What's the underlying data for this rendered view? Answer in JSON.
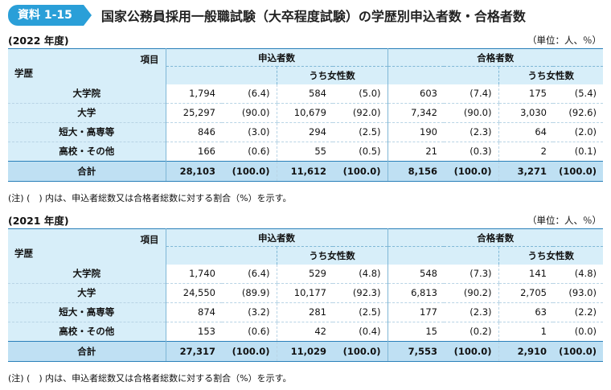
{
  "header": {
    "badge": "資料 1-15",
    "title": "国家公務員採用一般職試験（大卒程度試験）の学歴別申込者数・合格者数"
  },
  "columns": {
    "item_label": "項目",
    "edu_label": "学歴",
    "applicants": "申込者数",
    "passers": "合格者数",
    "women": "うち女性数"
  },
  "sections": [
    {
      "year": "(2022 年度)",
      "unit": "（単位：人、％）",
      "rows": [
        {
          "label": "大学院",
          "a": "1,794",
          "ap": "(6.4)",
          "aw": "584",
          "awp": "(5.0)",
          "p": "603",
          "pp": "(7.4)",
          "pw": "175",
          "pwp": "(5.4)"
        },
        {
          "label": "大学",
          "a": "25,297",
          "ap": "(90.0)",
          "aw": "10,679",
          "awp": "(92.0)",
          "p": "7,342",
          "pp": "(90.0)",
          "pw": "3,030",
          "pwp": "(92.6)"
        },
        {
          "label": "短大・高専等",
          "a": "846",
          "ap": "(3.0)",
          "aw": "294",
          "awp": "(2.5)",
          "p": "190",
          "pp": "(2.3)",
          "pw": "64",
          "pwp": "(2.0)"
        },
        {
          "label": "高校・その他",
          "a": "166",
          "ap": "(0.6)",
          "aw": "55",
          "awp": "(0.5)",
          "p": "21",
          "pp": "(0.3)",
          "pw": "2",
          "pwp": "(0.1)"
        }
      ],
      "total": {
        "label": "合計",
        "a": "28,103",
        "ap": "(100.0)",
        "aw": "11,612",
        "awp": "(100.0)",
        "p": "8,156",
        "pp": "(100.0)",
        "pw": "3,271",
        "pwp": "(100.0)"
      },
      "note": "(注) (　) 内は、申込者総数又は合格者総数に対する割合（%）を示す。"
    },
    {
      "year": "(2021 年度)",
      "unit": "（単位：人、％）",
      "rows": [
        {
          "label": "大学院",
          "a": "1,740",
          "ap": "(6.4)",
          "aw": "529",
          "awp": "(4.8)",
          "p": "548",
          "pp": "(7.3)",
          "pw": "141",
          "pwp": "(4.8)"
        },
        {
          "label": "大学",
          "a": "24,550",
          "ap": "(89.9)",
          "aw": "10,177",
          "awp": "(92.3)",
          "p": "6,813",
          "pp": "(90.2)",
          "pw": "2,705",
          "pwp": "(93.0)"
        },
        {
          "label": "短大・高専等",
          "a": "874",
          "ap": "(3.2)",
          "aw": "281",
          "awp": "(2.5)",
          "p": "177",
          "pp": "(2.3)",
          "pw": "63",
          "pwp": "(2.2)"
        },
        {
          "label": "高校・その他",
          "a": "153",
          "ap": "(0.6)",
          "aw": "42",
          "awp": "(0.4)",
          "p": "15",
          "pp": "(0.2)",
          "pw": "1",
          "pwp": "(0.0)"
        }
      ],
      "total": {
        "label": "合計",
        "a": "27,317",
        "ap": "(100.0)",
        "aw": "11,029",
        "awp": "(100.0)",
        "p": "7,553",
        "pp": "(100.0)",
        "pw": "2,910",
        "pwp": "(100.0)"
      },
      "note": "(注) (　) 内は、申込者総数又は合格者総数に対する割合（%）を示す。"
    }
  ]
}
